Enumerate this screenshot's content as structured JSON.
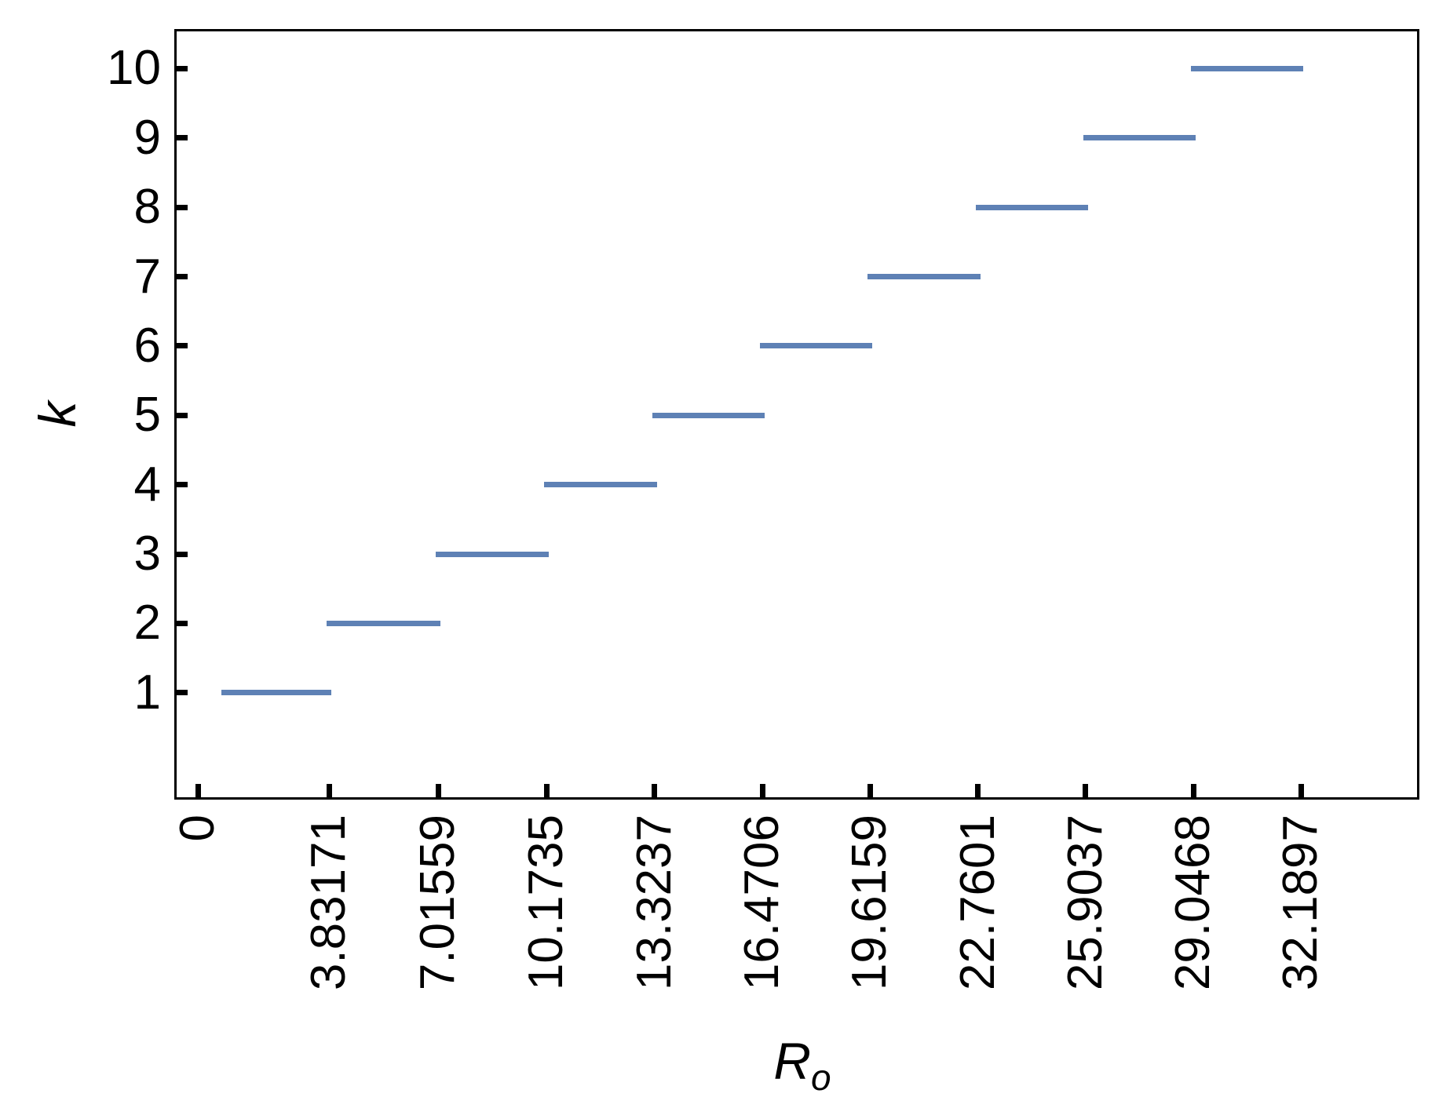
{
  "figure": {
    "background": "#FFFFFF",
    "ylabel": "k",
    "xlabel_base": "R",
    "xlabel_subscript": "o"
  },
  "chart_data": {
    "type": "line",
    "title": "",
    "xlabel": "R_o",
    "ylabel": "k",
    "legend": "none",
    "grid": "off",
    "frame": "on",
    "line_color": "#5E81B5",
    "axis_color": "#000000",
    "xlim": [
      -0.69,
      35.64
    ],
    "ylim": [
      -0.54,
      10.57
    ],
    "x_tick_values": [
      0,
      3.83171,
      7.01559,
      10.1735,
      13.3237,
      16.4706,
      19.6159,
      22.7601,
      25.9037,
      29.0468,
      32.1897
    ],
    "x_tick_labels": [
      "0",
      "3.83171",
      "7.01559",
      "10.1735",
      "13.3237",
      "16.4706",
      "19.6159",
      "22.7601",
      "25.9037",
      "29.0468",
      "32.1897"
    ],
    "y_tick_values": [
      1,
      2,
      3,
      4,
      5,
      6,
      7,
      8,
      9,
      10
    ],
    "y_tick_labels": [
      "1",
      "2",
      "3",
      "4",
      "5",
      "6",
      "7",
      "8",
      "9",
      "10"
    ],
    "segments": [
      {
        "k": 1,
        "x_start": 0.75,
        "x_end": 3.83171
      },
      {
        "k": 2,
        "x_start": 3.83171,
        "x_end": 7.01559
      },
      {
        "k": 3,
        "x_start": 7.01559,
        "x_end": 10.1735
      },
      {
        "k": 4,
        "x_start": 10.1735,
        "x_end": 13.3237
      },
      {
        "k": 5,
        "x_start": 13.3237,
        "x_end": 16.4706
      },
      {
        "k": 6,
        "x_start": 16.4706,
        "x_end": 19.6159
      },
      {
        "k": 7,
        "x_start": 19.6159,
        "x_end": 22.7601
      },
      {
        "k": 8,
        "x_start": 22.7601,
        "x_end": 25.9037
      },
      {
        "k": 9,
        "x_start": 25.9037,
        "x_end": 29.0468
      },
      {
        "k": 10,
        "x_start": 29.0468,
        "x_end": 32.1897
      }
    ]
  }
}
